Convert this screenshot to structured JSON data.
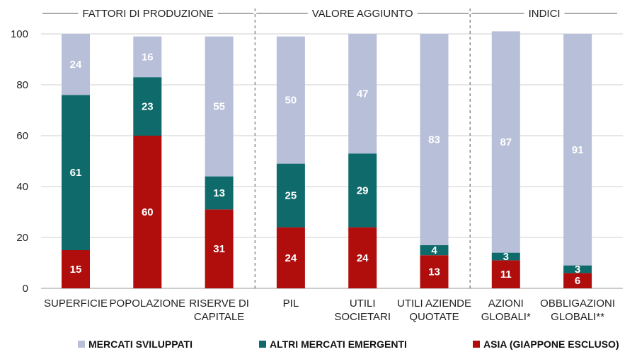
{
  "chart_data": {
    "type": "bar",
    "stacked": true,
    "ylim": [
      0,
      100
    ],
    "yticks": [
      0,
      20,
      40,
      60,
      80,
      100
    ],
    "grid": true,
    "legend_position": "bottom",
    "groups": [
      {
        "label": "FATTORI DI PRODUZIONE",
        "span": [
          0,
          2
        ]
      },
      {
        "label": "VALORE AGGIUNTO",
        "span": [
          3,
          5
        ]
      },
      {
        "label": "INDICI",
        "span": [
          6,
          7
        ]
      }
    ],
    "categories": [
      [
        "SUPERFICIE"
      ],
      [
        "POPOLAZIONE"
      ],
      [
        "RISERVE DI",
        "CAPITALE"
      ],
      [
        "PIL"
      ],
      [
        "UTILI",
        "SOCIETARI"
      ],
      [
        "UTILI AZIENDE",
        "QUOTATE"
      ],
      [
        "AZIONI",
        "GLOBALI*"
      ],
      [
        "OBBLIGAZIONI",
        "GLOBALI**"
      ]
    ],
    "series": [
      {
        "name": "ASIA (GIAPPONE ESCLUSO)",
        "color": "#b00d0d",
        "values": [
          15,
          60,
          31,
          24,
          24,
          13,
          11,
          6
        ]
      },
      {
        "name": "ALTRI MERCATI EMERGENTI",
        "color": "#0f6b6b",
        "values": [
          61,
          23,
          13,
          25,
          29,
          4,
          3,
          3
        ]
      },
      {
        "name": "MERCATI SVILUPPATI",
        "color": "#b7bfd9",
        "values": [
          24,
          16,
          55,
          50,
          47,
          83,
          87,
          91
        ]
      }
    ],
    "legend_order": [
      "MERCATI SVILUPPATI",
      "ALTRI MERCATI EMERGENTI",
      "ASIA (GIAPPONE ESCLUSO)"
    ]
  }
}
